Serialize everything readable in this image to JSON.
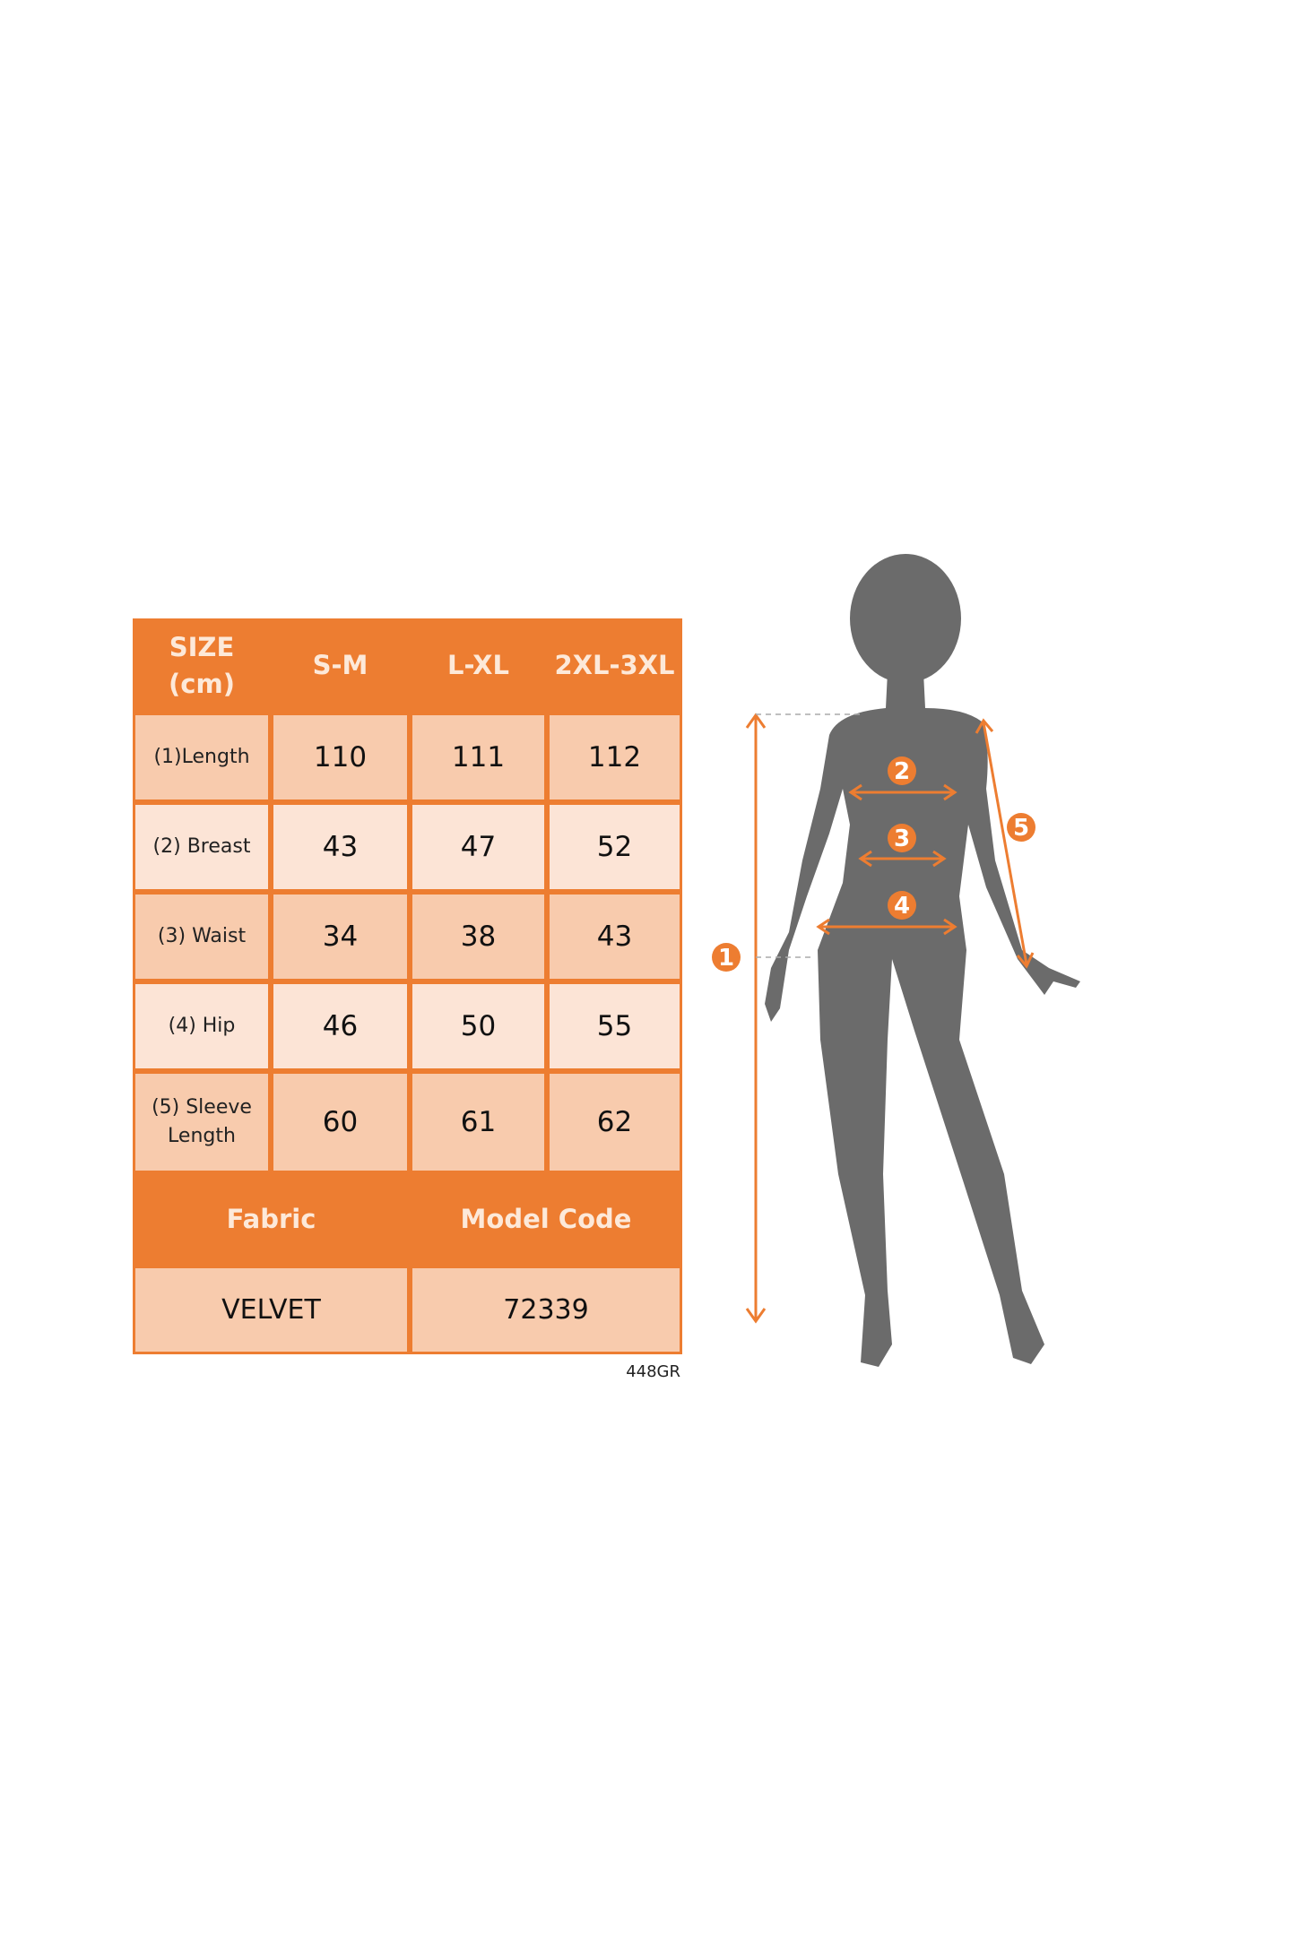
{
  "table": {
    "header": [
      "SIZE (cm)",
      "S-M",
      "L-XL",
      "2XL-3XL"
    ],
    "rows": [
      {
        "label": "(1)Length",
        "values": [
          "110",
          "111",
          "112"
        ]
      },
      {
        "label": "(2) Breast",
        "values": [
          "43",
          "47",
          "52"
        ]
      },
      {
        "label": "(3) Waist",
        "values": [
          "34",
          "38",
          "43"
        ]
      },
      {
        "label": "(4) Hip",
        "values": [
          "46",
          "50",
          "55"
        ]
      },
      {
        "label": "(5) Sleeve Length",
        "values": [
          "60",
          "61",
          "62"
        ]
      }
    ],
    "footer_header": [
      "Fabric",
      "Model Code"
    ],
    "footer_values": [
      "VELVET",
      "72339"
    ]
  },
  "code_label": "448GR",
  "figure": {
    "markers": [
      "1",
      "2",
      "3",
      "4",
      "5"
    ]
  },
  "colors": {
    "accent": "#ed7d31",
    "row_dark": "#f8cbad",
    "row_light": "#fce4d6",
    "silhouette": "#6b6b6b"
  }
}
